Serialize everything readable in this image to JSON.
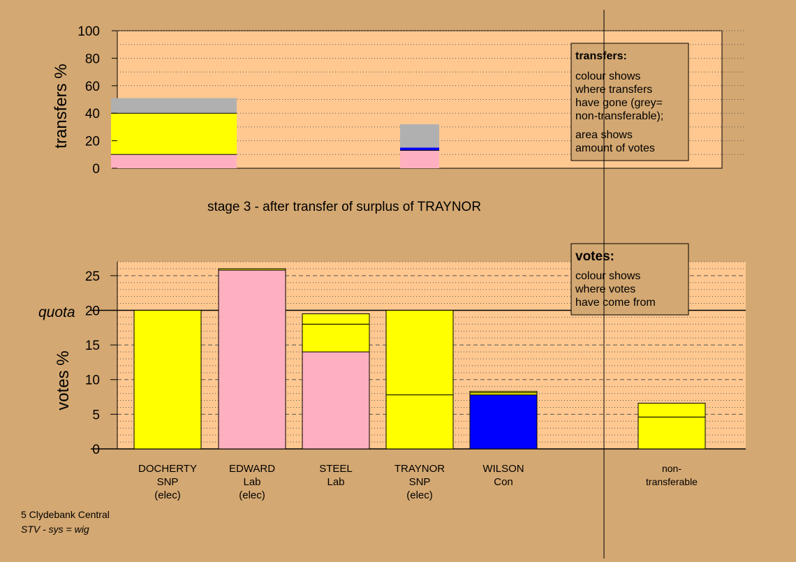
{
  "colors": {
    "background": "#d4a872",
    "plot_fill": "#ffc890",
    "Lab": "#ffb0c0",
    "SNP": "#ffff00",
    "Con": "#0000ff",
    "nontransferable": "#b0b0b0"
  },
  "stage_title": "stage 3 - after transfer of surplus of TRAYNOR",
  "footer": {
    "line1": "5 Clydebank Central",
    "line2": "STV - sys = wig"
  },
  "chart_data": [
    {
      "type": "bar",
      "name": "transfers",
      "stacked": true,
      "ylabel": "transfers %",
      "ylim": [
        0,
        100
      ],
      "yticks": [
        0,
        20,
        40,
        60,
        80,
        100
      ],
      "grid": "dotted every 10",
      "legend": {
        "title": "transfers:",
        "lines": [
          "colour shows",
          "where transfers",
          "have gone (grey=",
          "non-transferable);"
        ],
        "lines2": [
          "area shows",
          "amount of votes"
        ]
      },
      "bars": [
        {
          "segments": [
            {
              "value": 10,
              "color": "Lab"
            },
            {
              "value": 30,
              "color": "SNP"
            },
            {
              "value": 11,
              "color": "nontransferable"
            }
          ]
        },
        {
          "segments": [
            {
              "value": 13,
              "color": "Lab"
            },
            {
              "value": 2,
              "color": "Con"
            },
            {
              "value": 17,
              "color": "nontransferable"
            }
          ]
        }
      ]
    },
    {
      "type": "bar",
      "name": "votes",
      "stacked": true,
      "ylabel": "votes %",
      "ylim": [
        0,
        27
      ],
      "yticks": [
        0,
        5,
        10,
        15,
        20,
        25
      ],
      "quota": 20,
      "quota_label": "quota",
      "legend": {
        "title": "votes:",
        "lines": [
          "colour shows",
          "where votes",
          "have come from"
        ]
      },
      "categories": [
        {
          "lines": [
            "DOCHERTY",
            "SNP",
            "(elec)"
          ]
        },
        {
          "lines": [
            "EDWARD",
            "Lab",
            "(elec)"
          ]
        },
        {
          "lines": [
            "STEEL",
            "Lab"
          ]
        },
        {
          "lines": [
            "TRAYNOR",
            "SNP",
            "(elec)"
          ]
        },
        {
          "lines": [
            "WILSON",
            "Con"
          ]
        },
        {
          "lines": [
            "non-",
            "transferable"
          ]
        }
      ],
      "stacks": [
        [
          {
            "value": 20,
            "color": "SNP"
          }
        ],
        [
          {
            "value": 25.8,
            "color": "Lab"
          },
          {
            "value": 0.2,
            "color": "SNP"
          }
        ],
        [
          {
            "value": 14,
            "color": "Lab"
          },
          {
            "value": 4,
            "color": "SNP"
          },
          {
            "value": 1.5,
            "color": "SNP"
          }
        ],
        [
          {
            "value": 7.8,
            "color": "SNP"
          },
          {
            "value": 12.2,
            "color": "SNP"
          }
        ],
        [
          {
            "value": 7.8,
            "color": "Con"
          },
          {
            "value": 0.3,
            "color": "SNP"
          },
          {
            "value": 0.2,
            "color": "SNP"
          }
        ],
        [
          {
            "value": 4.6,
            "color": "SNP"
          },
          {
            "value": 2,
            "color": "SNP"
          }
        ]
      ]
    }
  ]
}
